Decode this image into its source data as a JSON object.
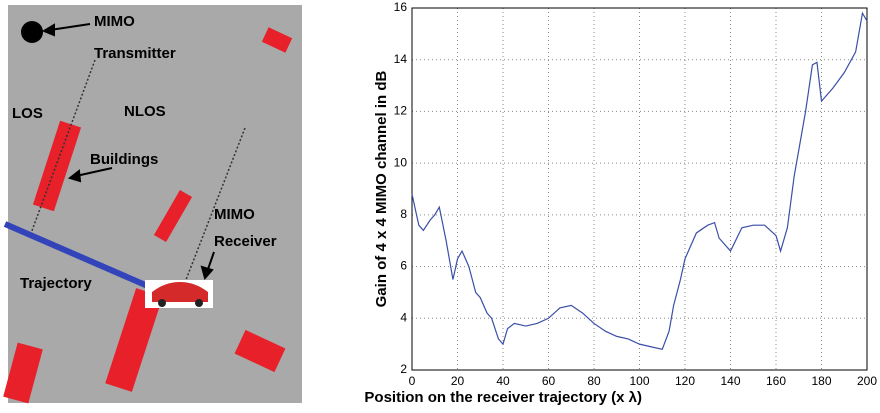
{
  "diagram": {
    "labels": [
      "MIMO",
      "Transmitter",
      "LOS",
      "NLOS",
      "Buildings",
      "MIMO",
      "Receiver",
      "Trajectory"
    ]
  },
  "chart_data": {
    "type": "line",
    "xlabel": "Position on the receiver trajectory (x λ)",
    "ylabel": "Gain of 4 x 4 MIMO channel in dB",
    "color": "#3a4fa8",
    "x": [
      0,
      3,
      5,
      8,
      10,
      12,
      15,
      18,
      20,
      22,
      25,
      28,
      30,
      33,
      35,
      38,
      40,
      42,
      45,
      50,
      55,
      60,
      65,
      70,
      75,
      80,
      85,
      90,
      95,
      100,
      105,
      110,
      113,
      115,
      118,
      120,
      125,
      130,
      133,
      135,
      140,
      145,
      150,
      155,
      160,
      162,
      165,
      168,
      170,
      173,
      176,
      178,
      180,
      185,
      190,
      195,
      198,
      200
    ],
    "values": [
      8.8,
      7.6,
      7.4,
      7.8,
      8.0,
      8.3,
      7.0,
      5.5,
      6.3,
      6.6,
      6.0,
      5.0,
      4.8,
      4.2,
      4.0,
      3.2,
      3.0,
      3.6,
      3.8,
      3.7,
      3.8,
      4.0,
      4.4,
      4.5,
      4.2,
      3.8,
      3.5,
      3.3,
      3.2,
      3.0,
      2.9,
      2.8,
      3.5,
      4.5,
      5.5,
      6.3,
      7.3,
      7.6,
      7.7,
      7.1,
      6.6,
      7.5,
      7.6,
      7.6,
      7.2,
      6.6,
      7.5,
      9.5,
      10.5,
      12.0,
      13.8,
      13.9,
      12.4,
      12.9,
      13.5,
      14.3,
      15.8,
      15.5
    ],
    "xlim": [
      0,
      200
    ],
    "xticks": [
      0,
      20,
      40,
      60,
      80,
      100,
      120,
      140,
      160,
      180,
      200
    ],
    "ylim": [
      2,
      16
    ],
    "yticks": [
      2,
      4,
      6,
      8,
      10,
      12,
      14,
      16
    ],
    "grid": true
  }
}
